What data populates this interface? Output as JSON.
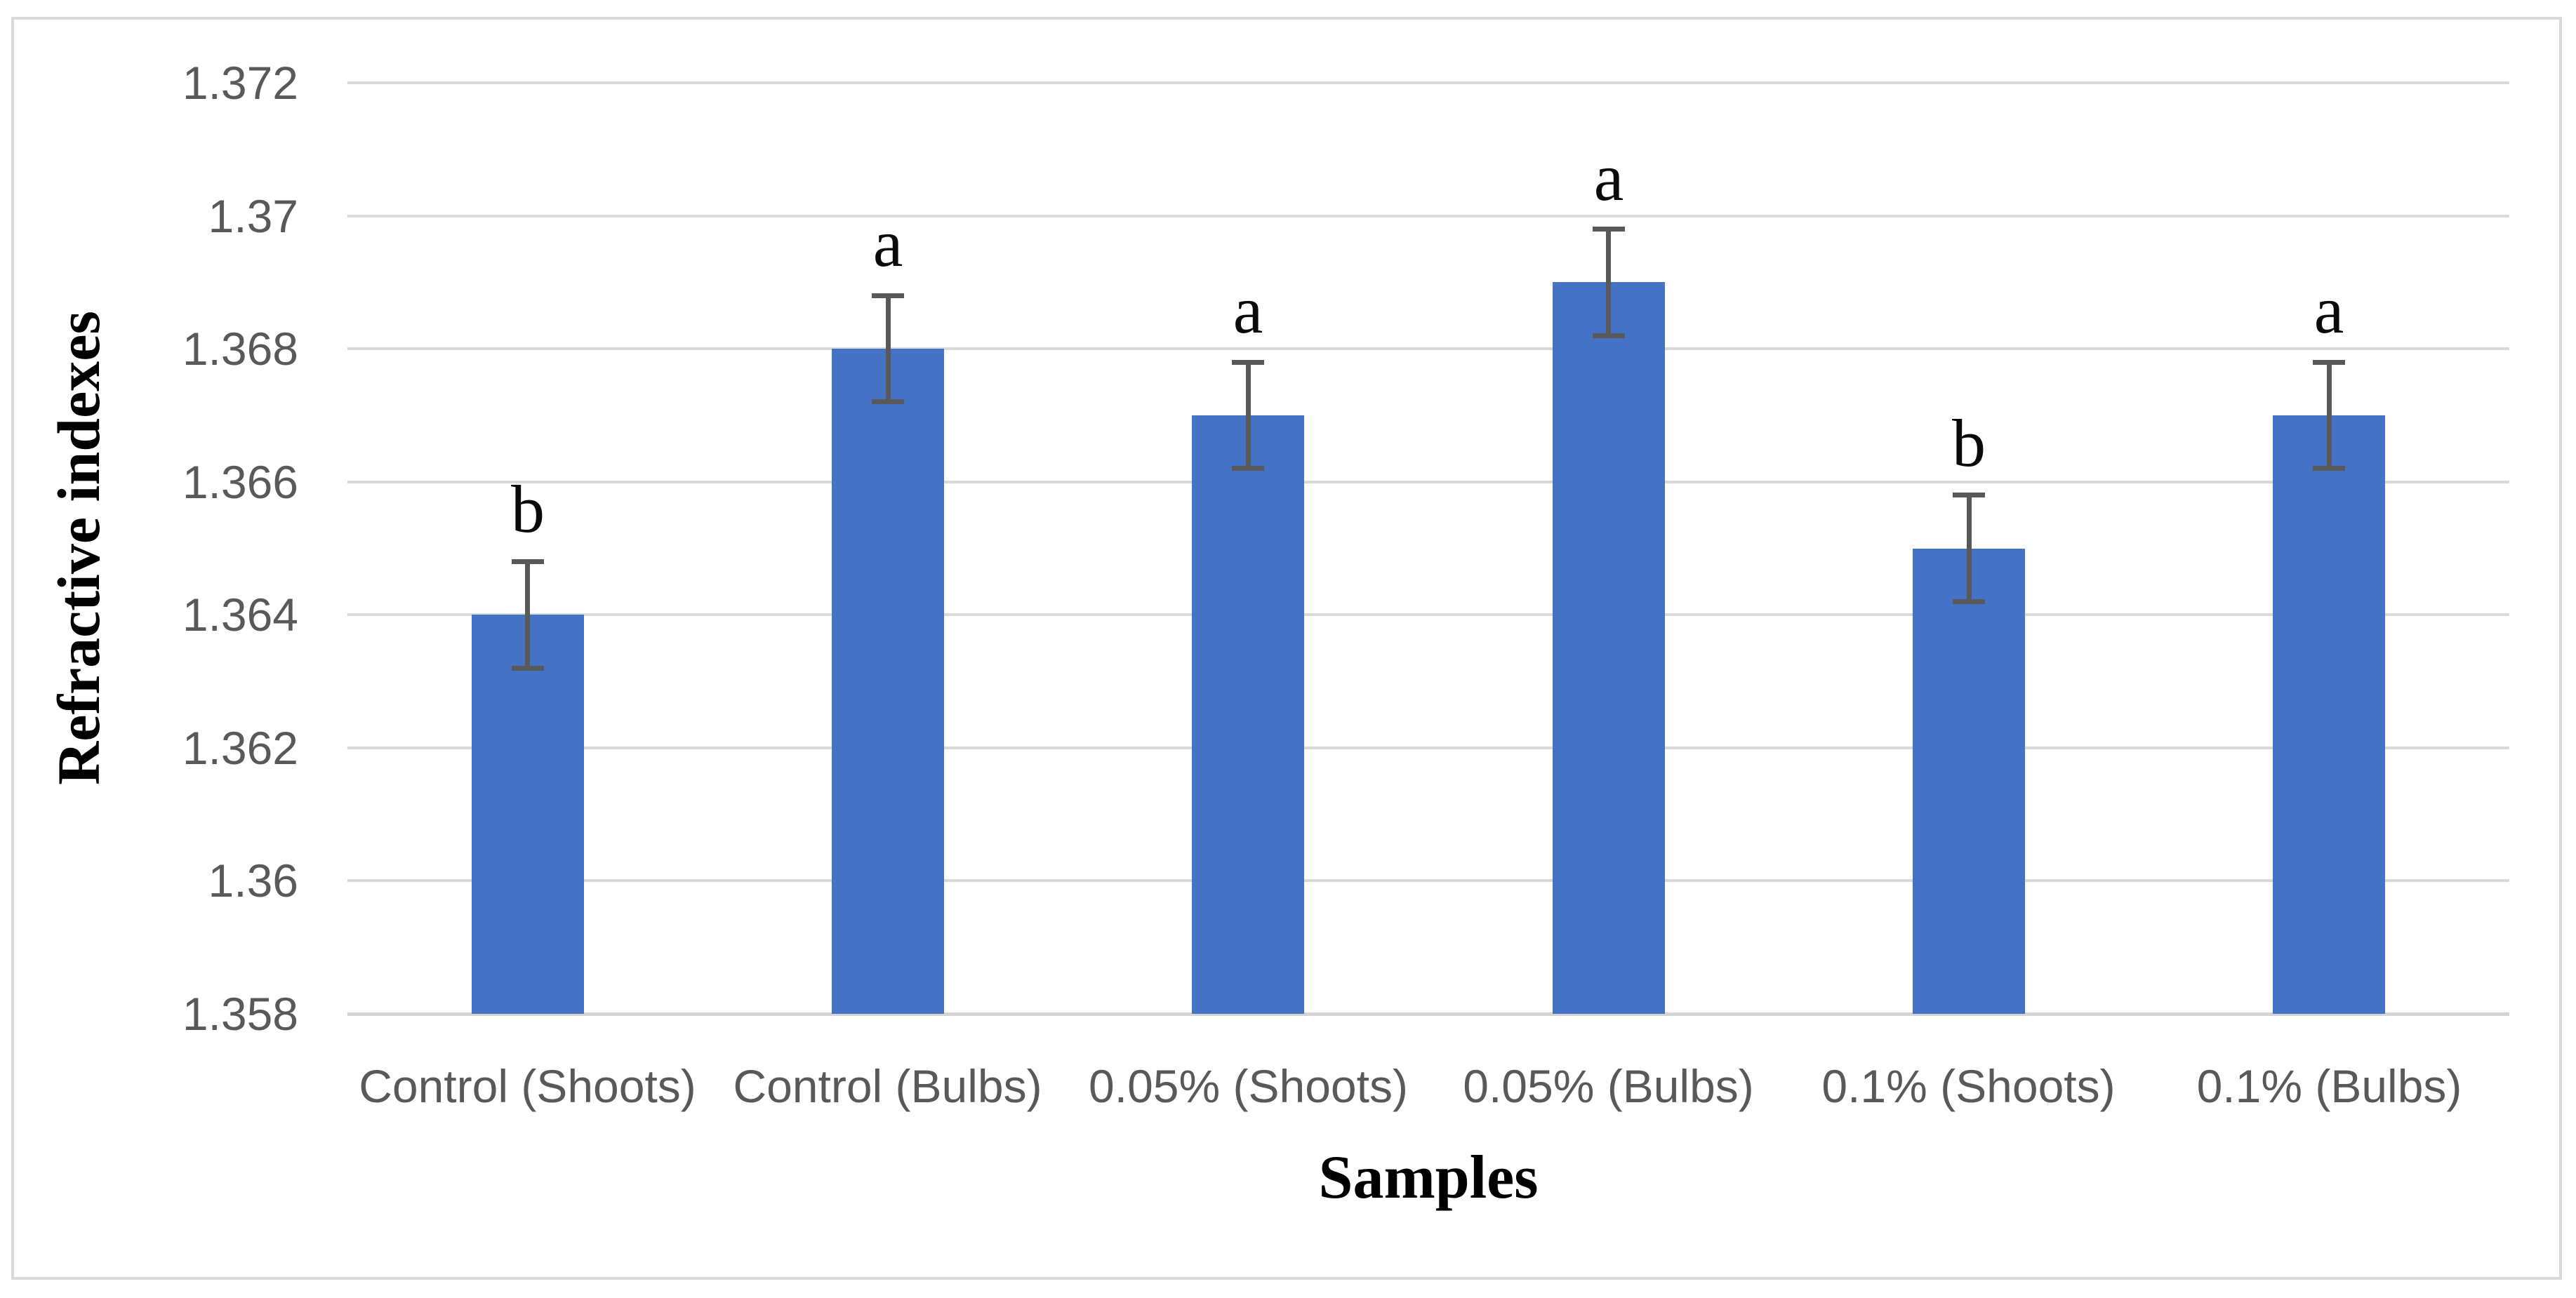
{
  "chart_data": {
    "type": "bar",
    "title": "",
    "xlabel": "Samples",
    "ylabel": "Refractive indexes",
    "categories": [
      "Control (Shoots)",
      "Control (Bulbs)",
      "0.05% (Shoots)",
      "0.05% (Bulbs)",
      "0.1% (Shoots)",
      "0.1% (Bulbs)"
    ],
    "values": [
      1.364,
      1.368,
      1.367,
      1.369,
      1.365,
      1.367
    ],
    "error_bars": [
      0.0008,
      0.0008,
      0.0008,
      0.0008,
      0.0008,
      0.0008
    ],
    "significance_letters": [
      "b",
      "a",
      "a",
      "a",
      "b",
      "a"
    ],
    "ylim": [
      1.358,
      1.372
    ],
    "ytick_step": 0.002,
    "ytick_labels": [
      "1.358",
      "1.36",
      "1.362",
      "1.364",
      "1.366",
      "1.368",
      "1.37",
      "1.372"
    ],
    "grid": true,
    "legend": false,
    "colors": {
      "bar": "#4472C4",
      "error_bar": "#595959",
      "gridline": "#D9D9D9",
      "tick_text": "#595959",
      "axis_title_text": "#000000",
      "significance_letter_text": "#0A0A0A",
      "frame_border": "#D9D9D9",
      "background": "#FFFFFF"
    }
  }
}
